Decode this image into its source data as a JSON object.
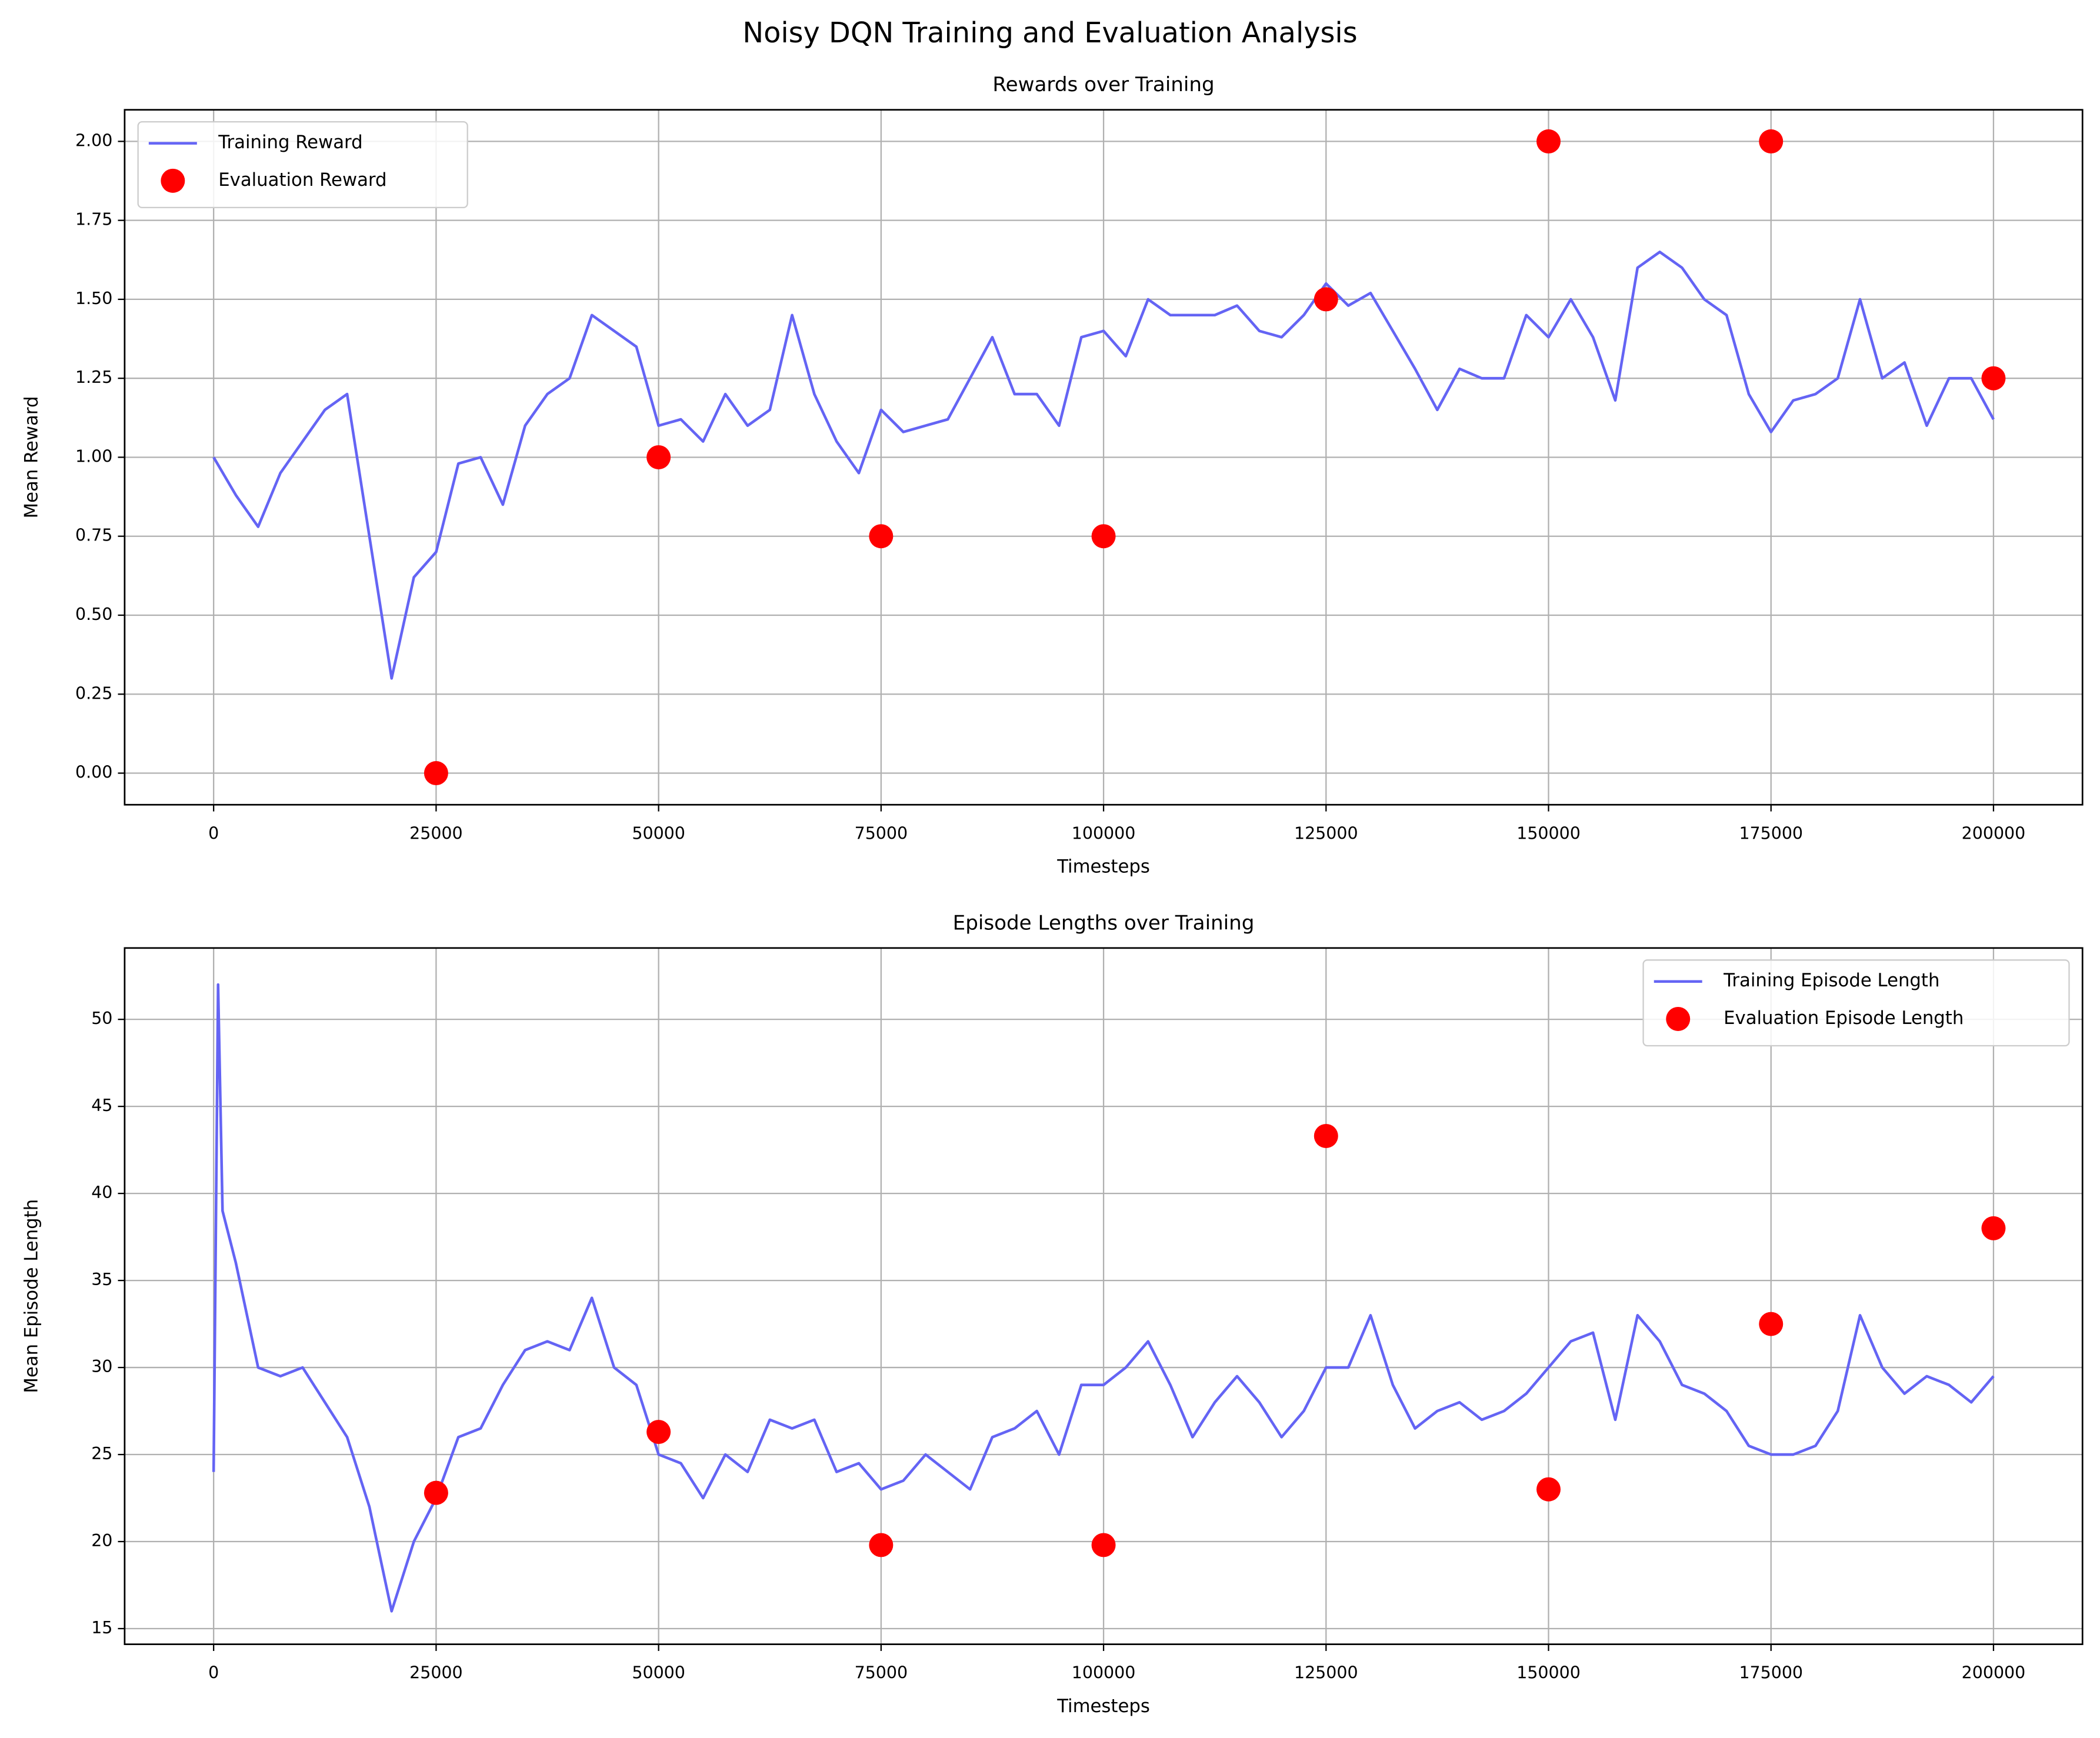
{
  "title": "Noisy DQN Training and Evaluation Analysis",
  "chart_data": [
    {
      "type": "line",
      "title": "Rewards over Training",
      "x_label": "Timesteps",
      "y_label": "Mean Reward",
      "xlim": [
        -10000,
        210000
      ],
      "xticks": [
        0,
        25000,
        50000,
        75000,
        100000,
        125000,
        150000,
        175000,
        200000
      ],
      "ylim": [
        -0.1,
        2.1
      ],
      "yticks": [
        {
          "value": 0,
          "label": "0.00"
        },
        {
          "value": 0.25,
          "label": "0.25"
        },
        {
          "value": 0.5,
          "label": "0.50"
        },
        {
          "value": 0.75,
          "label": "0.75"
        },
        {
          "value": 1,
          "label": "1.00"
        },
        {
          "value": 1.25,
          "label": "1.25"
        },
        {
          "value": 1.5,
          "label": "1.50"
        },
        {
          "value": 1.75,
          "label": "1.75"
        },
        {
          "value": 2,
          "label": "2.00"
        }
      ],
      "grid": true,
      "legend": "upper left",
      "series": [
        {
          "name": "Training Reward",
          "type": "line",
          "color": "#6464f4",
          "x": [
            0,
            2500,
            5000,
            7500,
            10000,
            12500,
            15000,
            17500,
            20000,
            22500,
            25000,
            27500,
            30000,
            32500,
            35000,
            37500,
            40000,
            42500,
            45000,
            47500,
            50000,
            52500,
            55000,
            57500,
            60000,
            62500,
            65000,
            67500,
            70000,
            72500,
            75000,
            77500,
            80000,
            82500,
            85000,
            87500,
            90000,
            92500,
            95000,
            97500,
            100000,
            102500,
            105000,
            107500,
            110000,
            112500,
            115000,
            117500,
            120000,
            122500,
            125000,
            127500,
            130000,
            132500,
            135000,
            137500,
            140000,
            142500,
            145000,
            147500,
            150000,
            152500,
            155000,
            157500,
            160000,
            162500,
            165000,
            167500,
            170000,
            172500,
            175000,
            177500,
            180000,
            182500,
            185000,
            187500,
            190000,
            192500,
            195000,
            197500,
            200000
          ],
          "values": [
            1.0,
            0.88,
            0.78,
            0.95,
            1.05,
            1.15,
            1.2,
            0.75,
            0.3,
            0.62,
            0.7,
            0.98,
            1.0,
            0.85,
            1.1,
            1.2,
            1.25,
            1.45,
            1.4,
            1.35,
            1.1,
            1.12,
            1.05,
            1.2,
            1.1,
            1.15,
            1.45,
            1.2,
            1.05,
            0.95,
            1.15,
            1.08,
            1.1,
            1.12,
            1.25,
            1.38,
            1.2,
            1.2,
            1.1,
            1.38,
            1.4,
            1.32,
            1.5,
            1.45,
            1.45,
            1.45,
            1.48,
            1.4,
            1.38,
            1.45,
            1.55,
            1.48,
            1.52,
            1.4,
            1.28,
            1.15,
            1.28,
            1.25,
            1.25,
            1.45,
            1.38,
            1.5,
            1.38,
            1.18,
            1.6,
            1.65,
            1.6,
            1.5,
            1.45,
            1.2,
            1.08,
            1.18,
            1.2,
            1.25,
            1.5,
            1.25,
            1.3,
            1.1,
            1.25,
            1.25,
            1.12
          ]
        },
        {
          "name": "Evaluation Reward",
          "type": "scatter",
          "color": "#ff0000",
          "x": [
            25000,
            50000,
            75000,
            100000,
            125000,
            150000,
            175000,
            200000
          ],
          "values": [
            0,
            1,
            0.75,
            0.75,
            1.5,
            2,
            2,
            1.25
          ]
        }
      ]
    },
    {
      "type": "line",
      "title": "Episode Lengths over Training",
      "x_label": "Timesteps",
      "y_label": "Mean Episode Length",
      "xlim": [
        -10000,
        210000
      ],
      "xticks": [
        0,
        25000,
        50000,
        75000,
        100000,
        125000,
        150000,
        175000,
        200000
      ],
      "ylim": [
        14.1,
        54.1
      ],
      "yticks": [
        15,
        20,
        25,
        30,
        35,
        40,
        45,
        50
      ],
      "grid": true,
      "legend": "upper right",
      "series": [
        {
          "name": "Training Episode Length",
          "type": "line",
          "color": "#6464f4",
          "x": [
            0,
            500,
            1000,
            2500,
            5000,
            7500,
            10000,
            12500,
            15000,
            17500,
            20000,
            22500,
            25000,
            27500,
            30000,
            32500,
            35000,
            37500,
            40000,
            42500,
            45000,
            47500,
            50000,
            52500,
            55000,
            57500,
            60000,
            62500,
            65000,
            67500,
            70000,
            72500,
            75000,
            77500,
            80000,
            82500,
            85000,
            87500,
            90000,
            92500,
            95000,
            97500,
            100000,
            102500,
            105000,
            107500,
            110000,
            112500,
            115000,
            117500,
            120000,
            122500,
            125000,
            127500,
            130000,
            132500,
            135000,
            137500,
            140000,
            142500,
            145000,
            147500,
            150000,
            152500,
            155000,
            157500,
            160000,
            162500,
            165000,
            167500,
            170000,
            172500,
            175000,
            177500,
            180000,
            182500,
            185000,
            187500,
            190000,
            192500,
            195000,
            197500,
            200000
          ],
          "values": [
            24,
            52,
            39,
            36,
            30,
            29.5,
            30,
            28,
            26,
            22,
            16,
            20,
            22.5,
            26,
            26.5,
            29,
            31,
            31.5,
            31,
            34,
            30,
            29,
            25,
            24.5,
            22.5,
            25,
            24,
            27,
            26.5,
            27,
            24,
            24.5,
            23,
            23.5,
            25,
            24,
            23,
            26,
            26.5,
            27.5,
            25,
            29,
            29,
            30,
            31.5,
            29,
            26,
            28,
            29.5,
            28,
            26,
            27.5,
            30,
            30,
            33,
            29,
            26.5,
            27.5,
            28,
            27,
            27.5,
            28.5,
            30,
            31.5,
            32,
            27,
            33,
            31.5,
            29,
            28.5,
            27.5,
            25.5,
            25,
            25,
            25.5,
            27.5,
            33,
            30,
            28.5,
            29.5,
            29,
            28,
            29.5
          ]
        },
        {
          "name": "Evaluation Episode Length",
          "type": "scatter",
          "color": "#ff0000",
          "x": [
            25000,
            50000,
            75000,
            100000,
            125000,
            150000,
            175000,
            200000
          ],
          "values": [
            22.8,
            26.3,
            19.8,
            19.8,
            43.3,
            23,
            32.5,
            38
          ]
        }
      ]
    }
  ]
}
